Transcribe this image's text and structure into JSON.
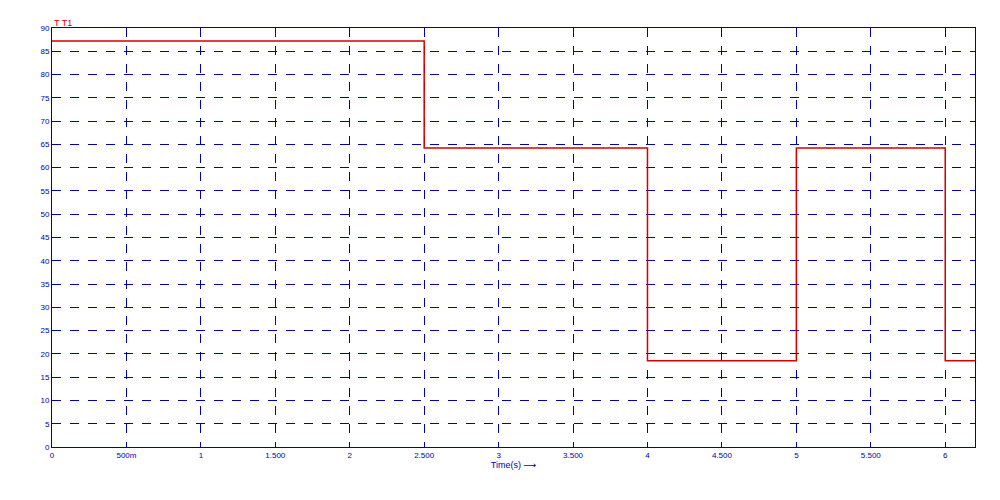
{
  "chart_data": {
    "type": "step",
    "title": "T T1",
    "x_label": "Time(s) ⟶",
    "x": [
      0,
      2.5,
      4,
      5,
      6,
      6.2
    ],
    "series": [
      {
        "color": "#d40000",
        "values": [
          87.2,
          64.2,
          18.5,
          64.2,
          18.5,
          18.5
        ]
      }
    ],
    "xlim": [
      0,
      6.2
    ],
    "xticks": [
      0,
      {
        "value": 0.5,
        "label": "500m"
      },
      1,
      {
        "value": 1.5,
        "label": "1.500"
      },
      2,
      {
        "value": 2.5,
        "label": "2.500"
      },
      3,
      {
        "value": 3.5,
        "label": "3.500"
      },
      4,
      {
        "value": 4.5,
        "label": "4.500"
      },
      5,
      {
        "value": 5.5,
        "label": "5.500"
      },
      6
    ],
    "ylim": [
      0,
      90
    ],
    "yticks": [
      0,
      5,
      10,
      15,
      20,
      25,
      30,
      35,
      40,
      45,
      50,
      55,
      60,
      65,
      70,
      75,
      80,
      85,
      90
    ],
    "grid": true
  }
}
